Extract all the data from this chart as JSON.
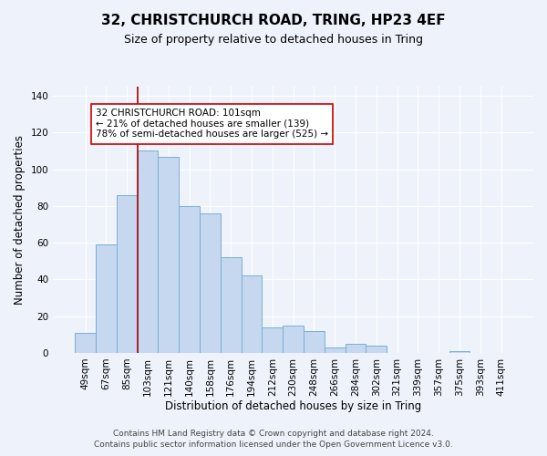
{
  "title": "32, CHRISTCHURCH ROAD, TRING, HP23 4EF",
  "subtitle": "Size of property relative to detached houses in Tring",
  "xlabel": "Distribution of detached houses by size in Tring",
  "ylabel": "Number of detached properties",
  "bar_labels": [
    "49sqm",
    "67sqm",
    "85sqm",
    "103sqm",
    "121sqm",
    "140sqm",
    "158sqm",
    "176sqm",
    "194sqm",
    "212sqm",
    "230sqm",
    "248sqm",
    "266sqm",
    "284sqm",
    "302sqm",
    "321sqm",
    "339sqm",
    "357sqm",
    "375sqm",
    "393sqm",
    "411sqm"
  ],
  "bar_values": [
    11,
    59,
    86,
    110,
    107,
    80,
    76,
    52,
    42,
    14,
    15,
    12,
    3,
    5,
    4,
    0,
    0,
    0,
    1,
    0,
    0
  ],
  "bar_color": "#c5d8f0",
  "bar_edge_color": "#7baed4",
  "ylim": [
    0,
    145
  ],
  "yticks": [
    0,
    20,
    40,
    60,
    80,
    100,
    120,
    140
  ],
  "vline_x_index": 3,
  "vline_color": "#aa0000",
  "annotation_text": "32 CHRISTCHURCH ROAD: 101sqm\n← 21% of detached houses are smaller (139)\n78% of semi-detached houses are larger (525) →",
  "annotation_box_color": "#ffffff",
  "annotation_box_edge": "#cc0000",
  "footer_line1": "Contains HM Land Registry data © Crown copyright and database right 2024.",
  "footer_line2": "Contains public sector information licensed under the Open Government Licence v3.0.",
  "background_color": "#eef2fa",
  "grid_color": "#ffffff",
  "title_fontsize": 11,
  "subtitle_fontsize": 9,
  "axis_label_fontsize": 8.5,
  "tick_fontsize": 7.5,
  "annotation_fontsize": 7.5,
  "footer_fontsize": 6.5
}
